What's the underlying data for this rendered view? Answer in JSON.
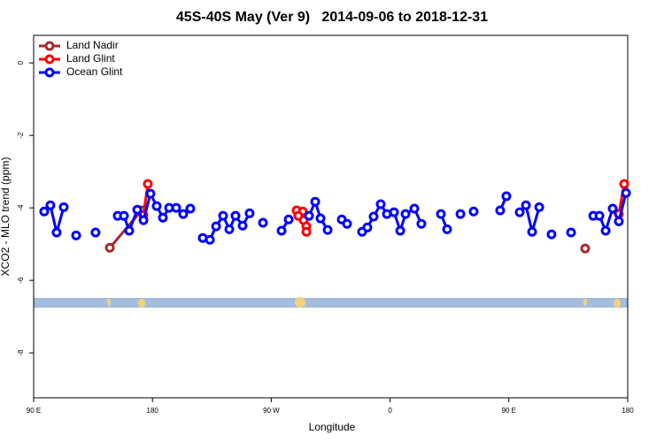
{
  "chart_data": {
    "type": "line",
    "title": "45S-40S May (Ver 9)   2014-09-06 to 2018-12-31",
    "x_label": "Longitude",
    "y_label": "XCO2 - MLO trend (ppm)",
    "xlim": [
      90,
      540
    ],
    "ylim": [
      -9.24,
      0.76
    ],
    "xticks": [
      {
        "value": 90,
        "label": "90 E"
      },
      180,
      {
        "value": 270,
        "label": "90 W"
      },
      {
        "value": 360,
        "label": "0"
      },
      {
        "value": 450,
        "label": "90 E"
      },
      {
        "value": 540,
        "label": "180"
      }
    ],
    "yticks": [
      0,
      -2,
      -4,
      -6,
      -8
    ],
    "legend": "top-left",
    "series": [
      {
        "name": "Land Nadir",
        "color": "#a52a2a",
        "x": [
          147.7,
          171.8,
          null,
          507.8
        ],
        "values": [
          -5.1,
          -4.07,
          null,
          -5.12
        ]
      },
      {
        "name": "Land Glint",
        "color": "#ff0000",
        "x": [
          173.2,
          176.5,
          null,
          289.2,
          293.9,
          290.5,
          294.5,
          296.6,
          296.6,
          null,
          533.3,
          537.3
        ],
        "values": [
          -4.2,
          -3.34,
          null,
          -4.07,
          -4.1,
          -4.22,
          -4.34,
          -4.51,
          -4.66,
          null,
          -4.17,
          -3.34
        ]
      },
      {
        "name": "Ocean Glint",
        "color": "#0000ff",
        "x": [
          98,
          102.7,
          107.4,
          112.8,
          null,
          122.2,
          null,
          136.9,
          null,
          153.7,
          158.4,
          162.4,
          168.5,
          173.2,
          178.5,
          183.2,
          187.9,
          192.6,
          198,
          203.3,
          208.7,
          null,
          218.1,
          223.5,
          228.2,
          233.5,
          238.2,
          242.9,
          248.3,
          253.6,
          null,
          263.7,
          null,
          277.8,
          283.2,
          null,
          298.6,
          303.3,
          307.3,
          312.7,
          null,
          323.4,
          327.4,
          null,
          338.8,
          342.8,
          347.5,
          352.9,
          357.6,
          363,
          367.7,
          371.7,
          378.4,
          383.7,
          null,
          398.5,
          403.2,
          null,
          413.3,
          null,
          423.3,
          null,
          443.4,
          448.1,
          null,
          458.2,
          462.9,
          467.6,
          473,
          null,
          482.3,
          null,
          497.1,
          null,
          513.9,
          518.6,
          523.3,
          528.6,
          533.3,
          538.7
        ],
        "values": [
          -4.1,
          -3.93,
          -4.68,
          -3.98,
          null,
          -4.76,
          null,
          -4.68,
          null,
          -4.22,
          -4.22,
          -4.63,
          -4.05,
          -4.34,
          -3.61,
          -3.95,
          -4.27,
          -4.0,
          -4.0,
          -4.17,
          -4.02,
          null,
          -4.83,
          -4.88,
          -4.51,
          -4.22,
          -4.59,
          -4.22,
          -4.49,
          -4.15,
          null,
          -4.41,
          null,
          -4.63,
          -4.32,
          null,
          -4.22,
          -3.83,
          -4.29,
          -4.61,
          null,
          -4.32,
          -4.44,
          null,
          -4.66,
          -4.54,
          -4.24,
          -3.9,
          -4.17,
          -4.12,
          -4.63,
          -4.17,
          -4.02,
          -4.44,
          null,
          -4.17,
          -4.59,
          null,
          -4.17,
          null,
          -4.1,
          null,
          -4.07,
          -3.68,
          null,
          -4.12,
          -3.93,
          -4.66,
          -3.98,
          null,
          -4.73,
          null,
          -4.68,
          null,
          -4.22,
          -4.22,
          -4.63,
          -4.02,
          -4.37,
          -3.59
        ]
      }
    ]
  }
}
